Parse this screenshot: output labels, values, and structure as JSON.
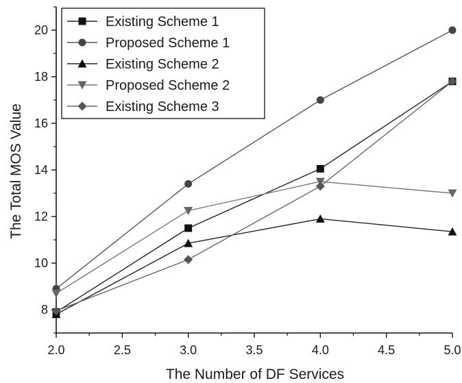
{
  "chart_data": {
    "type": "line",
    "xlabel": "The Number of DF Services",
    "ylabel": "The Total  MOS Value",
    "xlim": [
      2.0,
      5.0
    ],
    "ylim": [
      7.0,
      21.0
    ],
    "xticks": [
      2.0,
      2.5,
      3.0,
      3.5,
      4.0,
      4.5,
      5.0
    ],
    "xtick_labels": [
      "2.0",
      "2.5",
      "3.0",
      "3.5",
      "4.0",
      "4.5",
      "5.0"
    ],
    "yticks": [
      8,
      10,
      12,
      14,
      16,
      18,
      20
    ],
    "ytick_labels": [
      "8",
      "10",
      "12",
      "14",
      "16",
      "18",
      "20"
    ],
    "grid": false,
    "legend_position": "top-left",
    "x": [
      2.0,
      3.0,
      4.0,
      5.0
    ],
    "series": [
      {
        "name": "Existing Scheme 1",
        "values": [
          7.9,
          11.5,
          14.05,
          17.8
        ],
        "marker": "square",
        "color": "#111111",
        "line_color": "#222222"
      },
      {
        "name": "Proposed Scheme 1",
        "values": [
          8.9,
          13.4,
          17.0,
          20.0
        ],
        "marker": "circle",
        "color": "#444444",
        "line_color": "#555555"
      },
      {
        "name": "Existing Scheme 2",
        "values": [
          7.8,
          10.85,
          11.9,
          11.35
        ],
        "marker": "triangle-up",
        "color": "#111111",
        "line_color": "#222222"
      },
      {
        "name": "Proposed Scheme 2",
        "values": [
          8.7,
          12.25,
          13.5,
          13.0
        ],
        "marker": "triangle-down",
        "color": "#666666",
        "line_color": "#777777"
      },
      {
        "name": "Existing Scheme 3",
        "values": [
          7.95,
          10.15,
          13.3,
          17.8
        ],
        "marker": "diamond",
        "color": "#555555",
        "line_color": "#666666"
      }
    ]
  }
}
